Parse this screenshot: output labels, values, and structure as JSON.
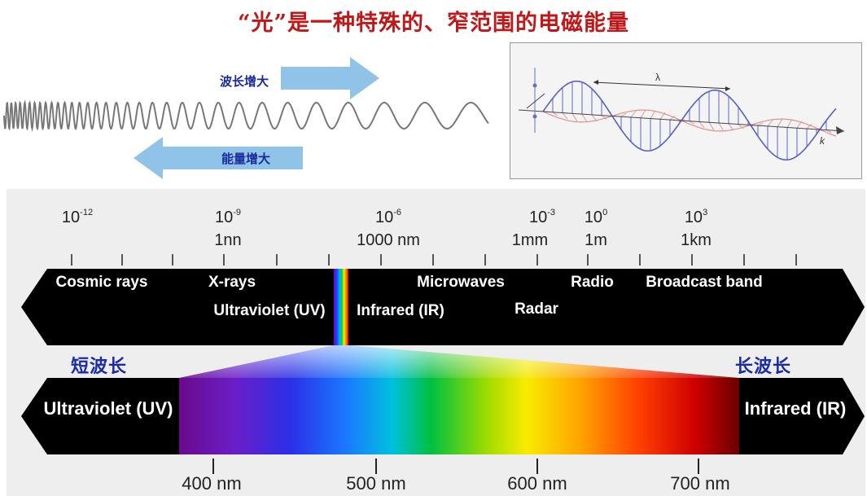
{
  "title": "“光”是一种特殊的、窄范围的电磁能量",
  "wavelength_increase": "波长增大",
  "energy_increase": "能量增大",
  "lambda_label": "λ",
  "k_label": "k",
  "scale_ticks": [
    {
      "exp": "10",
      "sup": "-12",
      "unit": ""
    },
    {
      "exp": "10",
      "sup": "-9",
      "unit": "1nn"
    },
    {
      "exp": "10",
      "sup": "-6",
      "unit": "1000 nm"
    },
    {
      "exp": "10",
      "sup": "-3",
      "unit": "1mm"
    },
    {
      "exp": "10",
      "sup": "0",
      "unit": "1m"
    },
    {
      "exp": "10",
      "sup": "3",
      "unit": "1km"
    }
  ],
  "bands": {
    "cosmic": "Cosmic rays",
    "xrays": "X-rays",
    "uv": "Ultraviolet (UV)",
    "ir": "Infrared (IR)",
    "microwaves": "Microwaves",
    "radar": "Radar",
    "radio": "Radio",
    "broadcast": "Broadcast band"
  },
  "short_wave": "短波长",
  "long_wave": "长波长",
  "visible_left": "Ultraviolet (UV)",
  "visible_right": "Infrared (IR)",
  "nm_ticks": [
    "400 nm",
    "500 nm",
    "600 nm",
    "700 nm"
  ],
  "colors": {
    "title": "#c01818",
    "cn_label": "#1a2aa8",
    "arrow": "#8fc3e8",
    "bar": "#000000"
  }
}
